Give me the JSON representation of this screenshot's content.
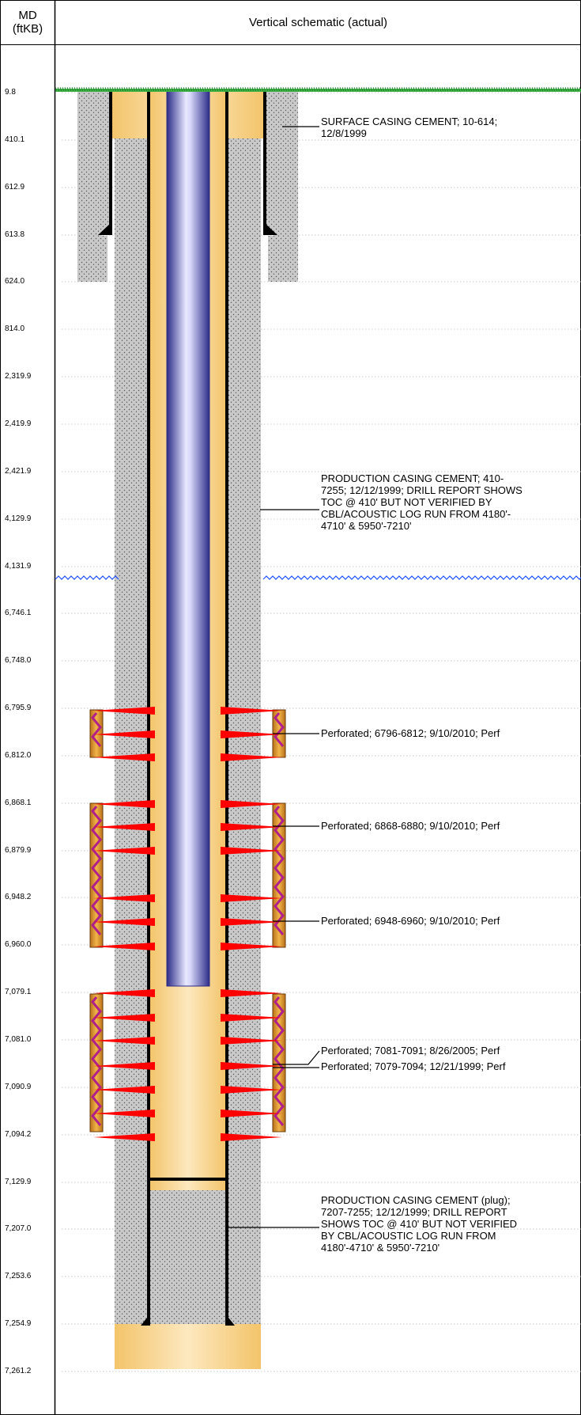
{
  "headers": {
    "md_line1": "MD",
    "md_line2": "(ftKB)",
    "schematic": "Vertical schematic (actual)"
  },
  "depths": [
    "9.8",
    "410.1",
    "612.9",
    "613.8",
    "624.0",
    "814.0",
    "2,319.9",
    "2,419.9",
    "2,421.9",
    "4,129.9",
    "4,131.9",
    "6,746.1",
    "6,748.0",
    "6,795.9",
    "6,812.0",
    "6,868.1",
    "6,879.9",
    "6,948.2",
    "6,960.0",
    "7,079.1",
    "7,081.0",
    "7,090.9",
    "7,094.2",
    "7,129.9",
    "7,207.0",
    "7,253.6",
    "7,254.9",
    "7,261.2"
  ],
  "annotations": {
    "surface_cement": "SURFACE CASING CEMENT; 10-614;\n12/8/1999",
    "production_cement": "PRODUCTION CASING CEMENT; 410-\n7255; 12/12/1999; DRILL REPORT SHOWS\nTOC @ 410' BUT NOT VERIFIED BY\nCBL/ACOUSTIC LOG RUN FROM 4180'-\n4710' & 5950'-7210'",
    "perf1": "Perforated; 6796-6812; 9/10/2010; Perf",
    "perf2": "Perforated; 6868-6880; 9/10/2010; Perf",
    "perf3": "Perforated; 6948-6960; 9/10/2010; Perf",
    "perf4": "Perforated; 7081-7091; 8/26/2005; Perf",
    "perf5": "Perforated; 7079-7094; 12/21/1999; Perf",
    "plug_cement": "PRODUCTION CASING CEMENT (plug);\n7207-7255; 12/12/1999; DRILL REPORT\nSHOWS TOC @ 410' BUT NOT VERIFIED\nBY CBL/ACOUSTIC LOG RUN FROM\n4180'-4710' & 5950'-7210'"
  },
  "colors": {
    "ground": "#3cb043",
    "water": "#1f4fff",
    "cement": "#c8c8c8",
    "hole": "#f7d79b",
    "tubing": "#3a3aa8",
    "perf_red": "#ff0000",
    "perf_gun": "#c8831c",
    "perf_magenta": "#b0208a"
  }
}
